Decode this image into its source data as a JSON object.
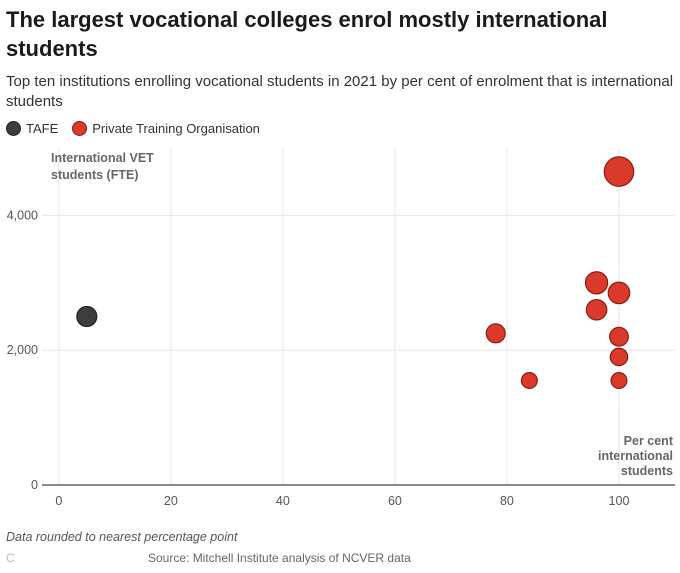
{
  "title": "The largest vocational colleges enrol mostly international students",
  "subtitle": "Top ten institutions enrolling vocational students in 2021 by per cent of enrolment that is international students",
  "legend": [
    {
      "label": "TAFE",
      "color": "#3d3d3d"
    },
    {
      "label": "Private Training Organisation",
      "color": "#d93a2b"
    }
  ],
  "chart_data": {
    "type": "scatter",
    "ylabel": "International VET students (FTE)",
    "xlabel": "Per cent international students",
    "xlim": [
      -3,
      110
    ],
    "ylim": [
      0,
      5000
    ],
    "x_ticks": [
      0,
      20,
      40,
      60,
      80,
      100
    ],
    "y_ticks": [
      0,
      2000,
      4000
    ],
    "y_tick_labels": [
      "0",
      "2,000",
      "4,000"
    ],
    "grid": true,
    "series": [
      {
        "name": "TAFE",
        "color": "#3d3d3d",
        "points": [
          {
            "x": 5,
            "y": 2500
          }
        ]
      },
      {
        "name": "Private Training Organisation",
        "color": "#d93a2b",
        "points": [
          {
            "x": 100,
            "y": 4650
          },
          {
            "x": 96,
            "y": 3000
          },
          {
            "x": 100,
            "y": 2850
          },
          {
            "x": 96,
            "y": 2600
          },
          {
            "x": 78,
            "y": 2250
          },
          {
            "x": 100,
            "y": 2200
          },
          {
            "x": 100,
            "y": 1900
          },
          {
            "x": 84,
            "y": 1550
          },
          {
            "x": 100,
            "y": 1550
          }
        ]
      }
    ]
  },
  "footer": {
    "note": "Data rounded to nearest percentage point",
    "stray": "C",
    "source": "Source: Mitchell Institute analysis of NCVER data"
  }
}
